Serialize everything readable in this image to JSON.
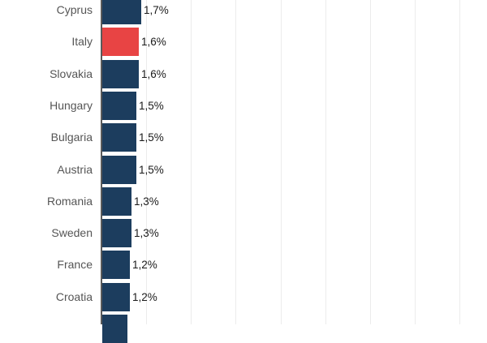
{
  "chart_data": {
    "type": "bar",
    "orientation": "horizontal",
    "title": "",
    "xlabel": "",
    "ylabel": "",
    "categories": [
      "Cyprus",
      "Italy",
      "Slovakia",
      "Hungary",
      "Bulgaria",
      "Austria",
      "Romania",
      "Sweden",
      "France",
      "Croatia"
    ],
    "values": [
      1.7,
      1.6,
      1.6,
      1.5,
      1.5,
      1.5,
      1.3,
      1.3,
      1.2,
      1.2
    ],
    "value_labels": [
      "1,7%",
      "1,6%",
      "1,6%",
      "1,5%",
      "1,5%",
      "1,5%",
      "1,3%",
      "1,3%",
      "1,2%",
      "1,2%"
    ],
    "unit": "%",
    "highlight": "Italy",
    "colors": {
      "default": "#1c3d5e",
      "highlight": "#e84444"
    },
    "grid": true,
    "gridline_step": 2,
    "partial_bar_below": true
  },
  "colors": {
    "bar": "#1c3d5e",
    "highlight": "#e84444",
    "grid": "#ececec",
    "axis": "#5a5a5a",
    "label": "#555555",
    "value": "#1a1a1a"
  }
}
